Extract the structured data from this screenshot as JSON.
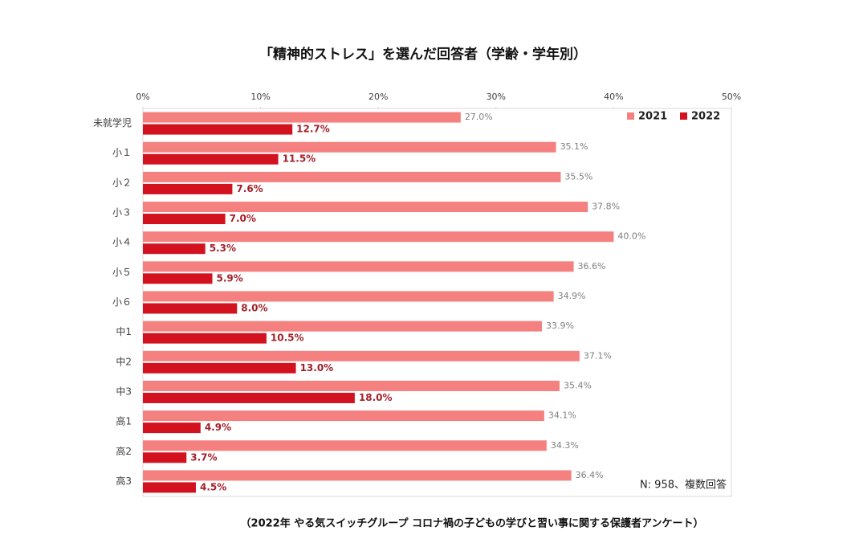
{
  "chart_data": {
    "type": "hbar",
    "title": "「精神的ストレス」を選んだ回答者（学齢・学年別）",
    "categories": [
      "未就学児",
      "小１",
      "小２",
      "小３",
      "小４",
      "小５",
      "小６",
      "中1",
      "中2",
      "中3",
      "高1",
      "高2",
      "高3"
    ],
    "series": [
      {
        "name": "2021",
        "color": "#f4817f",
        "values": [
          27.0,
          35.1,
          35.5,
          37.8,
          40.0,
          36.6,
          34.9,
          33.9,
          37.1,
          35.4,
          34.1,
          34.3,
          36.4
        ],
        "value_labels": [
          "27.0%",
          "35.1%",
          "35.5%",
          "37.8%",
          "40.0%",
          "36.6%",
          "34.9%",
          "33.9%",
          "37.1%",
          "35.4%",
          "34.1%",
          "34.3%",
          "36.4%"
        ]
      },
      {
        "name": "2022",
        "color": "#d3121f",
        "values": [
          12.7,
          11.5,
          7.6,
          7.0,
          5.3,
          5.9,
          8.0,
          10.5,
          13.0,
          18.0,
          4.9,
          3.7,
          4.5
        ],
        "value_labels": [
          "12.7%",
          "11.5%",
          "7.6%",
          "7.0%",
          "5.3%",
          "5.9%",
          "8.0%",
          "10.5%",
          "13.0%",
          "18.0%",
          "4.9%",
          "3.7%",
          "4.5%"
        ]
      }
    ],
    "xlim": [
      0,
      50
    ],
    "xticks": [
      {
        "value": 0,
        "label": "0%"
      },
      {
        "value": 10,
        "label": "10%"
      },
      {
        "value": 20,
        "label": "20%"
      },
      {
        "value": 30,
        "label": "30%"
      },
      {
        "value": 40,
        "label": "40%"
      },
      {
        "value": 50,
        "label": "50%"
      }
    ],
    "grid": false,
    "legend": "upper right",
    "annotation": "N: 958、複数回答",
    "source": "（2022年 やる気スイッチグループ コロナ禍の子どもの学びと習い事に関する保護者アンケート）"
  }
}
